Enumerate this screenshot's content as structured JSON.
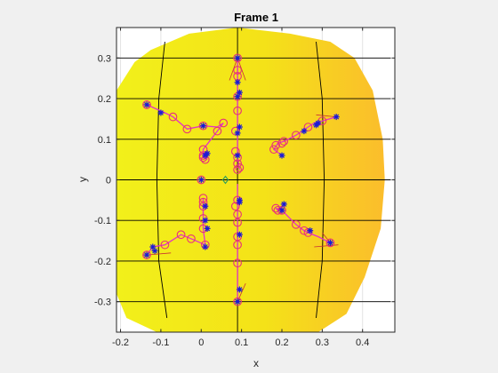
{
  "chart_data": {
    "type": "scatter",
    "title": "Frame 1",
    "xlabel": "x",
    "ylabel": "y",
    "xlim": [
      -0.21,
      0.48
    ],
    "ylim": [
      -0.375,
      0.375
    ],
    "x_ticks": [
      -0.2,
      -0.1,
      0,
      0.1,
      0.2,
      0.3,
      0.4
    ],
    "x_tick_labels": [
      "-0.2",
      "-0.1",
      "0",
      "0.1",
      "0.2",
      "0.3",
      "0.4"
    ],
    "y_ticks": [
      -0.3,
      -0.2,
      -0.1,
      0,
      0.1,
      0.2,
      0.3
    ],
    "y_tick_labels": [
      "-0.3",
      "-0.2",
      "-0.1",
      "0",
      "0.1",
      "0.2",
      "0.3"
    ],
    "grid": true,
    "colors": {
      "field_light": "#f2f01a",
      "field_dark": "#fbbd2c",
      "mesh_line": "#000000",
      "circle_marker": "#e8307a",
      "polyline": "#e233c8",
      "star_marker": "#1a1ad6",
      "stem_line": "#c83232",
      "center_marker": "#2e9e5a"
    },
    "domain_outline": [
      [
        -0.125,
        0.32
      ],
      [
        -0.03,
        0.36
      ],
      [
        0.09,
        0.375
      ],
      [
        0.22,
        0.36
      ],
      [
        0.32,
        0.34
      ],
      [
        0.38,
        0.3
      ],
      [
        0.425,
        0.22
      ],
      [
        0.45,
        0.1
      ],
      [
        0.455,
        0
      ],
      [
        0.445,
        -0.12
      ],
      [
        0.405,
        -0.24
      ],
      [
        0.36,
        -0.33
      ],
      [
        0.29,
        -0.375
      ],
      [
        -0.11,
        -0.375
      ],
      [
        -0.185,
        -0.34
      ],
      [
        -0.21,
        -0.28
      ],
      [
        -0.21,
        0.22
      ],
      [
        -0.165,
        0.29
      ]
    ],
    "mesh_horizontal_y": [
      -0.3,
      -0.2,
      -0.1,
      0,
      0.1,
      0.2,
      0.3
    ],
    "mesh_vertical_curves": [
      [
        [
          -0.09,
          0.34
        ],
        [
          -0.105,
          0.2
        ],
        [
          -0.11,
          0
        ],
        [
          -0.105,
          -0.2
        ],
        [
          -0.085,
          -0.34
        ]
      ],
      [
        [
          0.09,
          0.375
        ],
        [
          0.09,
          -0.375
        ]
      ],
      [
        [
          0.285,
          0.34
        ],
        [
          0.3,
          0.2
        ],
        [
          0.305,
          0
        ],
        [
          0.3,
          -0.2
        ],
        [
          0.285,
          -0.34
        ]
      ]
    ],
    "series": [
      {
        "name": "",
        "type": "polyline",
        "values": [
          [
            0.09,
            0.3
          ],
          [
            0.09,
            0.225
          ],
          [
            0.09,
            0.205
          ],
          [
            0.09,
            0.17
          ],
          [
            0.09,
            0.13
          ],
          [
            0.09,
            0.115
          ],
          [
            0.09,
            0.07
          ],
          [
            0.09,
            0.055
          ],
          [
            0.095,
            0.025
          ]
        ]
      },
      {
        "name": "",
        "type": "polyline",
        "values": [
          [
            0.09,
            -0.01
          ],
          [
            0.09,
            -0.045
          ],
          [
            0.09,
            -0.06
          ],
          [
            0.09,
            -0.1
          ],
          [
            0.09,
            -0.14
          ],
          [
            0.09,
            -0.21
          ],
          [
            0.09,
            -0.27
          ],
          [
            0.09,
            -0.3
          ]
        ]
      },
      {
        "name": "",
        "type": "polyline",
        "values": [
          [
            -0.135,
            0.185
          ],
          [
            -0.09,
            0.165
          ],
          [
            -0.07,
            0.155
          ],
          [
            -0.035,
            0.125
          ],
          [
            0.005,
            0.133
          ],
          [
            0.04,
            0.13
          ],
          [
            0.055,
            0.14
          ],
          [
            0.04,
            0.12
          ],
          [
            0.005,
            0.075
          ],
          [
            0.005,
            0.055
          ],
          [
            0.015,
            0.05
          ]
        ]
      },
      {
        "name": "",
        "type": "polyline",
        "values": [
          [
            0.335,
            0.155
          ],
          [
            0.3,
            0.145
          ],
          [
            0.28,
            0.14
          ],
          [
            0.265,
            0.13
          ],
          [
            0.235,
            0.11
          ],
          [
            0.205,
            0.095
          ],
          [
            0.19,
            0.09
          ],
          [
            0.18,
            0.075
          ],
          [
            0.2,
            0.06
          ]
        ]
      },
      {
        "name": "",
        "type": "polyline",
        "values": [
          [
            -0.135,
            -0.185
          ],
          [
            -0.12,
            -0.165
          ],
          [
            -0.09,
            -0.16
          ],
          [
            -0.05,
            -0.135
          ],
          [
            -0.025,
            -0.145
          ],
          [
            0.01,
            -0.16
          ],
          [
            0.005,
            -0.12
          ],
          [
            0.005,
            -0.095
          ],
          [
            0.005,
            -0.055
          ],
          [
            0.005,
            -0.045
          ]
        ]
      },
      {
        "name": "",
        "type": "polyline",
        "values": [
          [
            0.32,
            -0.155
          ],
          [
            0.29,
            -0.14
          ],
          [
            0.265,
            -0.13
          ],
          [
            0.255,
            -0.125
          ],
          [
            0.235,
            -0.11
          ],
          [
            0.2,
            -0.075
          ],
          [
            0.185,
            -0.07
          ],
          [
            0.19,
            -0.075
          ],
          [
            0.205,
            -0.06
          ]
        ]
      }
    ],
    "circle_markers": [
      [
        0.09,
        0.3
      ],
      [
        0.09,
        0.27
      ],
      [
        0.09,
        0.255
      ],
      [
        0.09,
        0.205
      ],
      [
        0.09,
        0.17
      ],
      [
        0.085,
        0.12
      ],
      [
        0.085,
        0.07
      ],
      [
        0.09,
        0.055
      ],
      [
        0.09,
        0.04
      ],
      [
        0.095,
        0.03
      ],
      [
        0.09,
        0.025
      ],
      [
        0.09,
        -0.05
      ],
      [
        0.085,
        -0.065
      ],
      [
        0.09,
        -0.085
      ],
      [
        0.09,
        -0.105
      ],
      [
        0.09,
        -0.14
      ],
      [
        0.09,
        -0.16
      ],
      [
        0.09,
        -0.205
      ],
      [
        0.09,
        -0.3
      ],
      [
        -0.135,
        0.185
      ],
      [
        -0.07,
        0.155
      ],
      [
        -0.035,
        0.125
      ],
      [
        0.005,
        0.133
      ],
      [
        0.055,
        0.14
      ],
      [
        0.04,
        0.12
      ],
      [
        0.005,
        0.075
      ],
      [
        0.005,
        0.06
      ],
      [
        0.005,
        0.055
      ],
      [
        0.01,
        0.05
      ],
      [
        0.3,
        0.145
      ],
      [
        0.265,
        0.13
      ],
      [
        0.235,
        0.11
      ],
      [
        0.205,
        0.095
      ],
      [
        0.2,
        0.09
      ],
      [
        0.185,
        0.085
      ],
      [
        0.18,
        0.075
      ],
      [
        -0.135,
        -0.185
      ],
      [
        -0.09,
        -0.16
      ],
      [
        -0.05,
        -0.135
      ],
      [
        -0.025,
        -0.145
      ],
      [
        0.01,
        -0.16
      ],
      [
        0.005,
        -0.12
      ],
      [
        0.005,
        -0.095
      ],
      [
        0.005,
        -0.055
      ],
      [
        0.005,
        -0.045
      ],
      [
        0.005,
        -0.065
      ],
      [
        0.32,
        -0.155
      ],
      [
        0.265,
        -0.13
      ],
      [
        0.255,
        -0.125
      ],
      [
        0.235,
        -0.11
      ],
      [
        0.2,
        -0.075
      ],
      [
        0.185,
        -0.07
      ],
      [
        0.19,
        -0.075
      ],
      [
        0.0,
        0.0
      ]
    ],
    "star_markers": [
      [
        0.09,
        0.3
      ],
      [
        0.09,
        0.24
      ],
      [
        0.095,
        0.215
      ],
      [
        0.095,
        0.13
      ],
      [
        0.09,
        0.115
      ],
      [
        0.09,
        0.06
      ],
      [
        0.095,
        -0.055
      ],
      [
        0.095,
        -0.05
      ],
      [
        0.095,
        -0.135
      ],
      [
        0.095,
        -0.27
      ],
      [
        0.09,
        -0.3
      ],
      [
        -0.135,
        0.185
      ],
      [
        -0.1,
        0.165
      ],
      [
        0.005,
        0.133
      ],
      [
        0.01,
        0.06
      ],
      [
        0.015,
        0.065
      ],
      [
        0.335,
        0.155
      ],
      [
        0.285,
        0.135
      ],
      [
        0.255,
        0.12
      ],
      [
        0.2,
        0.06
      ],
      [
        -0.135,
        -0.185
      ],
      [
        -0.12,
        -0.165
      ],
      [
        0.01,
        -0.165
      ],
      [
        0.015,
        -0.12
      ],
      [
        0.01,
        -0.065
      ],
      [
        0.32,
        -0.155
      ],
      [
        0.27,
        -0.125
      ],
      [
        0.205,
        -0.06
      ],
      [
        0.2,
        -0.075
      ],
      [
        0.0,
        0.0
      ],
      [
        0.09,
        0.205
      ],
      [
        0.29,
        0.14
      ],
      [
        -0.115,
        -0.175
      ],
      [
        0.01,
        -0.1
      ]
    ],
    "stem_segments": [
      [
        [
          0.09,
          0.3
        ],
        [
          0.07,
          0.245
        ]
      ],
      [
        [
          0.09,
          0.3
        ],
        [
          0.11,
          0.245
        ]
      ],
      [
        [
          0.335,
          0.155
        ],
        [
          0.285,
          0.16
        ]
      ],
      [
        [
          0.34,
          -0.16
        ],
        [
          0.28,
          -0.165
        ]
      ],
      [
        [
          0.32,
          -0.155
        ],
        [
          0.3,
          -0.13
        ]
      ],
      [
        [
          -0.135,
          -0.185
        ],
        [
          -0.075,
          -0.18
        ]
      ],
      [
        [
          0.09,
          -0.3
        ],
        [
          0.11,
          -0.255
        ]
      ],
      [
        [
          0.09,
          0.3
        ],
        [
          0.09,
          0.21
        ]
      ]
    ],
    "center_marker": [
      0.06,
      0.0
    ]
  }
}
